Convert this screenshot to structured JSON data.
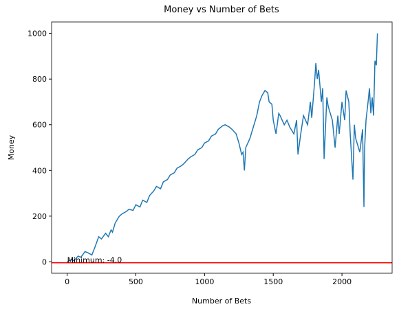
{
  "chart_data": {
    "type": "line",
    "title": "Money vs Number of Bets",
    "x_label": "Number of Bets",
    "y_label": "Money",
    "series": [
      {
        "name": "Money",
        "color": "#1f77b4",
        "x": [
          0,
          30,
          50,
          80,
          100,
          130,
          150,
          180,
          200,
          230,
          250,
          280,
          300,
          320,
          330,
          350,
          380,
          400,
          430,
          450,
          480,
          500,
          530,
          550,
          580,
          600,
          630,
          650,
          680,
          700,
          730,
          750,
          780,
          800,
          830,
          850,
          880,
          900,
          930,
          950,
          980,
          1000,
          1030,
          1050,
          1080,
          1100,
          1130,
          1150,
          1180,
          1200,
          1230,
          1250,
          1270,
          1280,
          1290,
          1300,
          1330,
          1350,
          1380,
          1400,
          1420,
          1440,
          1460,
          1470,
          1490,
          1500,
          1520,
          1540,
          1550,
          1580,
          1600,
          1620,
          1650,
          1670,
          1680,
          1700,
          1720,
          1750,
          1770,
          1780,
          1800,
          1810,
          1820,
          1830,
          1850,
          1860,
          1870,
          1890,
          1900,
          1920,
          1930,
          1950,
          1970,
          1980,
          2000,
          2020,
          2030,
          2050,
          2060,
          2080,
          2090,
          2100,
          2120,
          2130,
          2150,
          2160,
          2165,
          2175,
          2190,
          2200,
          2210,
          2220,
          2230,
          2240,
          2250,
          2258
        ],
        "values": [
          0,
          10,
          5,
          25,
          20,
          45,
          40,
          30,
          60,
          110,
          100,
          125,
          110,
          140,
          130,
          170,
          200,
          210,
          220,
          230,
          225,
          250,
          240,
          270,
          260,
          290,
          310,
          330,
          320,
          350,
          360,
          380,
          390,
          410,
          420,
          430,
          450,
          460,
          470,
          490,
          500,
          520,
          530,
          550,
          560,
          580,
          595,
          600,
          590,
          580,
          560,
          520,
          470,
          480,
          400,
          500,
          540,
          580,
          640,
          700,
          730,
          750,
          740,
          700,
          690,
          620,
          560,
          650,
          640,
          600,
          620,
          590,
          560,
          620,
          470,
          560,
          640,
          600,
          700,
          630,
          780,
          870,
          800,
          840,
          700,
          760,
          450,
          720,
          680,
          640,
          620,
          500,
          640,
          560,
          700,
          620,
          750,
          700,
          560,
          360,
          600,
          540,
          500,
          480,
          580,
          240,
          500,
          620,
          700,
          760,
          650,
          720,
          640,
          880,
          860,
          1000
        ]
      }
    ],
    "xlim": [
      -113,
      2365
    ],
    "xticks": [
      0,
      500,
      1000,
      1500,
      2000
    ],
    "ylim": [
      -50,
      1050
    ],
    "yticks": [
      0,
      200,
      400,
      600,
      800,
      1000
    ],
    "hline": {
      "value": -4,
      "color": "red"
    },
    "annotation": {
      "text": "Minimum: -4.0",
      "x": 0,
      "y": -4
    }
  }
}
